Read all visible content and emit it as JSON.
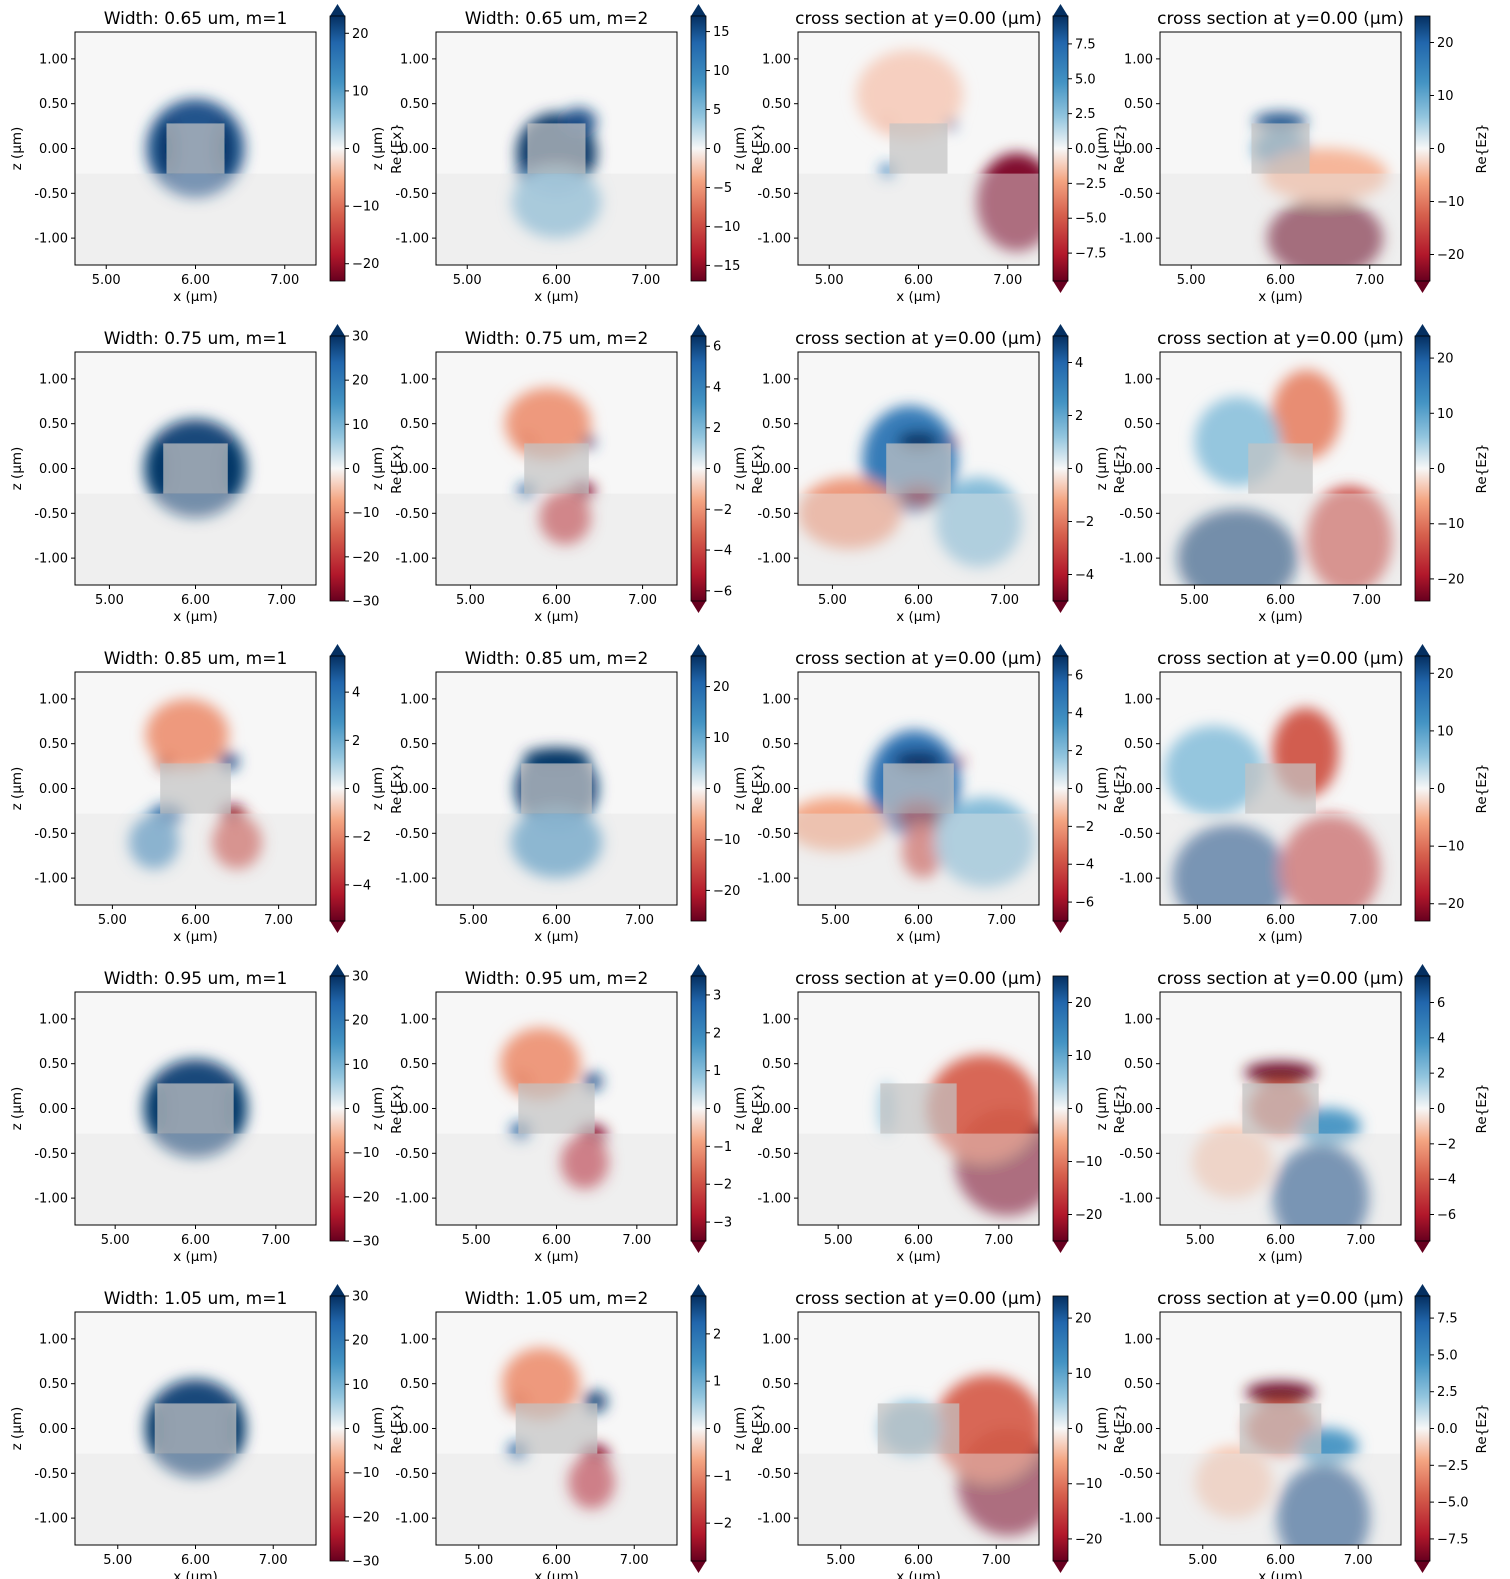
{
  "figure": {
    "xlabel": "x (μm)",
    "ylabel": "z (μm)",
    "colors": {
      "neg_extreme": "#67001f",
      "neg_mid": "#d6604d",
      "zero": "#f7f7f7",
      "pos_mid": "#4393c3",
      "pos_extreme": "#053061",
      "core": "#c4c4c4",
      "substrate": "#e4e4e4"
    }
  },
  "chart_data": [
    {
      "type": "heatmap",
      "row": 0,
      "col": 0,
      "field": "Ex",
      "title": "Width: 0.65 um, m=1",
      "xlabel": "x (μm)",
      "ylabel": "z (μm)",
      "cbar_label": "Re{Ex}",
      "xlim": [
        4.65,
        7.35
      ],
      "ylim": [
        -1.3,
        1.3
      ],
      "xticks": [
        "5.00",
        "6.00",
        "7.00"
      ],
      "yticks": [
        "1.00",
        "0.50",
        "0.00",
        "-0.50",
        "-1.00"
      ],
      "vlim": [
        -23,
        23
      ],
      "cbar_ticks": [
        "20",
        "10",
        "0",
        "−10",
        "−20"
      ],
      "extend": "max"
    },
    {
      "type": "heatmap",
      "row": 0,
      "col": 1,
      "field": "Ex",
      "title": "Width: 0.65 um, m=2",
      "xlabel": "x (μm)",
      "ylabel": "z (μm)",
      "cbar_label": "Re{Ex}",
      "xlim": [
        4.65,
        7.35
      ],
      "ylim": [
        -1.3,
        1.3
      ],
      "xticks": [
        "5.00",
        "6.00",
        "7.00"
      ],
      "yticks": [
        "1.00",
        "0.50",
        "0.00",
        "-0.50",
        "-1.00"
      ],
      "vlim": [
        -17,
        17
      ],
      "cbar_ticks": [
        "15",
        "10",
        "5",
        "0",
        "−5",
        "−10",
        "−15"
      ],
      "extend": "max"
    },
    {
      "type": "heatmap",
      "row": 0,
      "col": 2,
      "field": "Ez",
      "title": "cross section at y=0.00 (μm)",
      "xlabel": "x (μm)",
      "ylabel": "z (μm)",
      "cbar_label": "Re{Ez}",
      "xlim": [
        4.65,
        7.35
      ],
      "ylim": [
        -1.3,
        1.3
      ],
      "xticks": [
        "5.00",
        "6.00",
        "7.00"
      ],
      "yticks": [
        "1.00",
        "0.50",
        "0.00",
        "-0.50",
        "-1.00"
      ],
      "vlim": [
        -9.5,
        9.5
      ],
      "cbar_ticks": [
        "7.5",
        "5.0",
        "2.5",
        "0.0",
        "−2.5",
        "−5.0",
        "−7.5"
      ],
      "extend": "both"
    },
    {
      "type": "heatmap",
      "row": 0,
      "col": 3,
      "field": "Ez",
      "title": "cross section at y=0.00 (μm)",
      "xlabel": "x (μm)",
      "ylabel": "z (μm)",
      "cbar_label": "Re{Ez}",
      "xlim": [
        4.65,
        7.35
      ],
      "ylim": [
        -1.3,
        1.3
      ],
      "xticks": [
        "5.00",
        "6.00",
        "7.00"
      ],
      "yticks": [
        "1.00",
        "0.50",
        "0.00",
        "-0.50",
        "-1.00"
      ],
      "vlim": [
        -25,
        25
      ],
      "cbar_ticks": [
        "20",
        "10",
        "0",
        "−10",
        "−20"
      ],
      "extend": "min"
    },
    {
      "type": "heatmap",
      "row": 1,
      "col": 0,
      "field": "Ex",
      "title": "Width: 0.75 um, m=1",
      "xlabel": "x (μm)",
      "ylabel": "z (μm)",
      "cbar_label": "Re{Ex}",
      "xlim": [
        4.6,
        7.4
      ],
      "ylim": [
        -1.3,
        1.3
      ],
      "xticks": [
        "5.00",
        "6.00",
        "7.00"
      ],
      "yticks": [
        "1.00",
        "0.50",
        "0.00",
        "-0.50",
        "-1.00"
      ],
      "vlim": [
        -30,
        30
      ],
      "cbar_ticks": [
        "30",
        "20",
        "10",
        "0",
        "−10",
        "−20",
        "−30"
      ],
      "extend": "max"
    },
    {
      "type": "heatmap",
      "row": 1,
      "col": 1,
      "field": "Ex",
      "title": "Width: 0.75 um, m=2",
      "xlabel": "x (μm)",
      "ylabel": "z (μm)",
      "cbar_label": "Re{Ex}",
      "xlim": [
        4.6,
        7.4
      ],
      "ylim": [
        -1.3,
        1.3
      ],
      "xticks": [
        "5.00",
        "6.00",
        "7.00"
      ],
      "yticks": [
        "1.00",
        "0.50",
        "0.00",
        "-0.50",
        "-1.00"
      ],
      "vlim": [
        -6.5,
        6.5
      ],
      "cbar_ticks": [
        "6",
        "4",
        "2",
        "0",
        "−2",
        "−4",
        "−6"
      ],
      "extend": "both"
    },
    {
      "type": "heatmap",
      "row": 1,
      "col": 2,
      "field": "Ez",
      "title": "cross section at y=0.00 (μm)",
      "xlabel": "x (μm)",
      "ylabel": "z (μm)",
      "cbar_label": "Re{Ez}",
      "xlim": [
        4.6,
        7.4
      ],
      "ylim": [
        -1.3,
        1.3
      ],
      "xticks": [
        "5.00",
        "6.00",
        "7.00"
      ],
      "yticks": [
        "1.00",
        "0.50",
        "0.00",
        "-0.50",
        "-1.00"
      ],
      "vlim": [
        -5,
        5
      ],
      "cbar_ticks": [
        "4",
        "2",
        "0",
        "−2",
        "−4"
      ],
      "extend": "both"
    },
    {
      "type": "heatmap",
      "row": 1,
      "col": 3,
      "field": "Ez",
      "title": "cross section at y=0.00 (μm)",
      "xlabel": "x (μm)",
      "ylabel": "z (μm)",
      "cbar_label": "Re{Ez}",
      "xlim": [
        4.6,
        7.4
      ],
      "ylim": [
        -1.3,
        1.3
      ],
      "xticks": [
        "5.00",
        "6.00",
        "7.00"
      ],
      "yticks": [
        "1.00",
        "0.50",
        "0.00",
        "-0.50",
        "-1.00"
      ],
      "vlim": [
        -24,
        24
      ],
      "cbar_ticks": [
        "20",
        "10",
        "0",
        "−10",
        "−20"
      ],
      "extend": "max"
    },
    {
      "type": "heatmap",
      "row": 2,
      "col": 0,
      "field": "Ex",
      "title": "Width: 0.85 um, m=1",
      "xlabel": "x (μm)",
      "ylabel": "z (μm)",
      "cbar_label": "Re{Ex}",
      "xlim": [
        4.55,
        7.45
      ],
      "ylim": [
        -1.3,
        1.3
      ],
      "xticks": [
        "5.00",
        "6.00",
        "7.00"
      ],
      "yticks": [
        "1.00",
        "0.50",
        "0.00",
        "-0.50",
        "-1.00"
      ],
      "vlim": [
        -5.5,
        5.5
      ],
      "cbar_ticks": [
        "4",
        "2",
        "0",
        "−2",
        "−4"
      ],
      "extend": "both"
    },
    {
      "type": "heatmap",
      "row": 2,
      "col": 1,
      "field": "Ex",
      "title": "Width: 0.85 um, m=2",
      "xlabel": "x (μm)",
      "ylabel": "z (μm)",
      "cbar_label": "Re{Ex}",
      "xlim": [
        4.55,
        7.45
      ],
      "ylim": [
        -1.3,
        1.3
      ],
      "xticks": [
        "5.00",
        "6.00",
        "7.00"
      ],
      "yticks": [
        "1.00",
        "0.50",
        "0.00",
        "-0.50",
        "-1.00"
      ],
      "vlim": [
        -26,
        26
      ],
      "cbar_ticks": [
        "20",
        "10",
        "0",
        "−10",
        "−20"
      ],
      "extend": "max"
    },
    {
      "type": "heatmap",
      "row": 2,
      "col": 2,
      "field": "Ez",
      "title": "cross section at y=0.00 (μm)",
      "xlabel": "x (μm)",
      "ylabel": "z (μm)",
      "cbar_label": "Re{Ez}",
      "xlim": [
        4.55,
        7.45
      ],
      "ylim": [
        -1.3,
        1.3
      ],
      "xticks": [
        "5.00",
        "6.00",
        "7.00"
      ],
      "yticks": [
        "1.00",
        "0.50",
        "0.00",
        "-0.50",
        "-1.00"
      ],
      "vlim": [
        -7,
        7
      ],
      "cbar_ticks": [
        "6",
        "4",
        "2",
        "0",
        "−2",
        "−4",
        "−6"
      ],
      "extend": "both"
    },
    {
      "type": "heatmap",
      "row": 2,
      "col": 3,
      "field": "Ez",
      "title": "cross section at y=0.00 (μm)",
      "xlabel": "x (μm)",
      "ylabel": "z (μm)",
      "cbar_label": "Re{Ez}",
      "xlim": [
        4.55,
        7.45
      ],
      "ylim": [
        -1.3,
        1.3
      ],
      "xticks": [
        "5.00",
        "6.00",
        "7.00"
      ],
      "yticks": [
        "1.00",
        "0.50",
        "0.00",
        "-0.50",
        "-1.00"
      ],
      "vlim": [
        -23,
        23
      ],
      "cbar_ticks": [
        "20",
        "10",
        "0",
        "−10",
        "−20"
      ],
      "extend": "max"
    },
    {
      "type": "heatmap",
      "row": 3,
      "col": 0,
      "field": "Ex",
      "title": "Width: 0.95 um, m=1",
      "xlabel": "x (μm)",
      "ylabel": "z (μm)",
      "cbar_label": "Re{Ex}",
      "xlim": [
        4.5,
        7.5
      ],
      "ylim": [
        -1.3,
        1.3
      ],
      "xticks": [
        "5.00",
        "6.00",
        "7.00"
      ],
      "yticks": [
        "1.00",
        "0.50",
        "0.00",
        "-0.50",
        "-1.00"
      ],
      "vlim": [
        -30,
        30
      ],
      "cbar_ticks": [
        "30",
        "20",
        "10",
        "0",
        "−10",
        "−20",
        "−30"
      ],
      "extend": "max"
    },
    {
      "type": "heatmap",
      "row": 3,
      "col": 1,
      "field": "Ex",
      "title": "Width: 0.95 um, m=2",
      "xlabel": "x (μm)",
      "ylabel": "z (μm)",
      "cbar_label": "Re{Ex}",
      "xlim": [
        4.5,
        7.5
      ],
      "ylim": [
        -1.3,
        1.3
      ],
      "xticks": [
        "5.00",
        "6.00",
        "7.00"
      ],
      "yticks": [
        "1.00",
        "0.50",
        "0.00",
        "-0.50",
        "-1.00"
      ],
      "vlim": [
        -3.5,
        3.5
      ],
      "cbar_ticks": [
        "3",
        "2",
        "1",
        "0",
        "−1",
        "−2",
        "−3"
      ],
      "extend": "both"
    },
    {
      "type": "heatmap",
      "row": 3,
      "col": 2,
      "field": "Ez",
      "title": "cross section at y=0.00 (μm)",
      "xlabel": "x (μm)",
      "ylabel": "z (μm)",
      "cbar_label": "Re{Ez}",
      "xlim": [
        4.5,
        7.5
      ],
      "ylim": [
        -1.3,
        1.3
      ],
      "xticks": [
        "5.00",
        "6.00",
        "7.00"
      ],
      "yticks": [
        "1.00",
        "0.50",
        "0.00",
        "-0.50",
        "-1.00"
      ],
      "vlim": [
        -25,
        25
      ],
      "cbar_ticks": [
        "20",
        "10",
        "0",
        "−10",
        "−20"
      ],
      "extend": "min"
    },
    {
      "type": "heatmap",
      "row": 3,
      "col": 3,
      "field": "Ez",
      "title": "cross section at y=0.00 (μm)",
      "xlabel": "x (μm)",
      "ylabel": "z (μm)",
      "cbar_label": "Re{Ez}",
      "xlim": [
        4.5,
        7.5
      ],
      "ylim": [
        -1.3,
        1.3
      ],
      "xticks": [
        "5.00",
        "6.00",
        "7.00"
      ],
      "yticks": [
        "1.00",
        "0.50",
        "0.00",
        "-0.50",
        "-1.00"
      ],
      "vlim": [
        -7.5,
        7.5
      ],
      "cbar_ticks": [
        "6",
        "4",
        "2",
        "0",
        "−2",
        "−4",
        "−6"
      ],
      "extend": "both"
    },
    {
      "type": "heatmap",
      "row": 4,
      "col": 0,
      "field": "Ex",
      "title": "Width: 1.05 um, m=1",
      "xlabel": "x (μm)",
      "ylabel": "z (μm)",
      "cbar_label": "Re{Ex}",
      "xlim": [
        4.45,
        7.55
      ],
      "ylim": [
        -1.3,
        1.3
      ],
      "xticks": [
        "5.00",
        "6.00",
        "7.00"
      ],
      "yticks": [
        "1.00",
        "0.50",
        "0.00",
        "-0.50",
        "-1.00"
      ],
      "vlim": [
        -30,
        30
      ],
      "cbar_ticks": [
        "30",
        "20",
        "10",
        "0",
        "−10",
        "−20",
        "−30"
      ],
      "extend": "max"
    },
    {
      "type": "heatmap",
      "row": 4,
      "col": 1,
      "field": "Ex",
      "title": "Width: 1.05 um, m=2",
      "xlabel": "x (μm)",
      "ylabel": "z (μm)",
      "cbar_label": "Re{Ex}",
      "xlim": [
        4.45,
        7.55
      ],
      "ylim": [
        -1.3,
        1.3
      ],
      "xticks": [
        "5.00",
        "6.00",
        "7.00"
      ],
      "yticks": [
        "1.00",
        "0.50",
        "0.00",
        "-0.50",
        "-1.00"
      ],
      "vlim": [
        -2.8,
        2.8
      ],
      "cbar_ticks": [
        "2",
        "1",
        "0",
        "−1",
        "−2"
      ],
      "extend": "both"
    },
    {
      "type": "heatmap",
      "row": 4,
      "col": 2,
      "field": "Ez",
      "title": "cross section at y=0.00 (μm)",
      "xlabel": "x (μm)",
      "ylabel": "z (μm)",
      "cbar_label": "Re{Ez}",
      "xlim": [
        4.45,
        7.55
      ],
      "ylim": [
        -1.3,
        1.3
      ],
      "xticks": [
        "5.00",
        "6.00",
        "7.00"
      ],
      "yticks": [
        "1.00",
        "0.50",
        "0.00",
        "-0.50",
        "-1.00"
      ],
      "vlim": [
        -24,
        24
      ],
      "cbar_ticks": [
        "20",
        "10",
        "0",
        "−10",
        "−20"
      ],
      "extend": "min"
    },
    {
      "type": "heatmap",
      "row": 4,
      "col": 3,
      "field": "Ez",
      "title": "cross section at y=0.00 (μm)",
      "xlabel": "x (μm)",
      "ylabel": "z (μm)",
      "cbar_label": "Re{Ez}",
      "xlim": [
        4.45,
        7.55
      ],
      "ylim": [
        -1.3,
        1.3
      ],
      "xticks": [
        "5.00",
        "6.00",
        "7.00"
      ],
      "yticks": [
        "1.00",
        "0.50",
        "0.00",
        "-0.50",
        "-1.00"
      ],
      "vlim": [
        -9,
        9
      ],
      "cbar_ticks": [
        "7.5",
        "5.0",
        "2.5",
        "0.0",
        "−2.5",
        "−5.0",
        "−7.5"
      ],
      "extend": "both"
    }
  ]
}
